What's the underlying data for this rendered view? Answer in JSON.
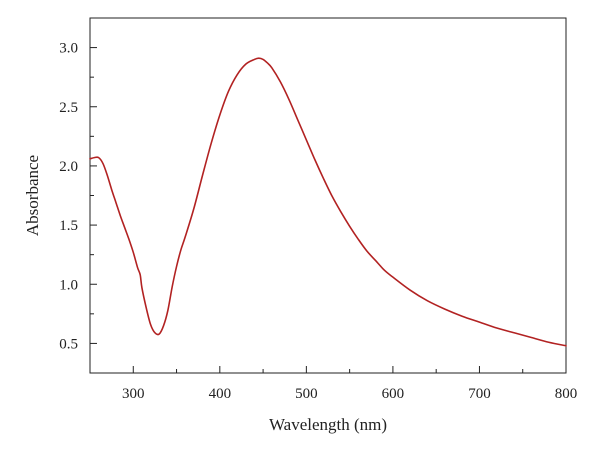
{
  "chart_data": {
    "type": "line",
    "title": "",
    "xlabel": "Wavelength (nm)",
    "ylabel": "Absorbance",
    "xlim": [
      250,
      800
    ],
    "ylim": [
      0.25,
      3.25
    ],
    "x_ticks": [
      300,
      400,
      500,
      600,
      700,
      800
    ],
    "x_tick_labels": [
      "300",
      "400",
      "500",
      "600",
      "700",
      "800"
    ],
    "y_ticks": [
      0.5,
      1.0,
      1.5,
      2.0,
      2.5,
      3.0
    ],
    "y_tick_labels": [
      "0.5",
      "1.0",
      "1.5",
      "2.0",
      "2.5",
      "3.0"
    ],
    "grid": false,
    "legend": "none",
    "colors": {
      "line": "#b22222",
      "axis": "#222222"
    },
    "series": [
      {
        "x": [
          250,
          255,
          260,
          265,
          270,
          275,
          280,
          285,
          290,
          295,
          300,
          305,
          308,
          310,
          315,
          320,
          325,
          330,
          335,
          340,
          345,
          350,
          355,
          360,
          370,
          380,
          390,
          400,
          410,
          420,
          430,
          440,
          445,
          450,
          455,
          460,
          470,
          480,
          490,
          500,
          510,
          520,
          530,
          540,
          550,
          560,
          570,
          580,
          590,
          600,
          620,
          640,
          660,
          680,
          700,
          720,
          740,
          760,
          780,
          800
        ],
        "y": [
          2.06,
          2.07,
          2.07,
          2.02,
          1.92,
          1.8,
          1.69,
          1.58,
          1.48,
          1.38,
          1.27,
          1.14,
          1.08,
          0.97,
          0.8,
          0.66,
          0.59,
          0.58,
          0.65,
          0.78,
          0.98,
          1.15,
          1.29,
          1.4,
          1.64,
          1.92,
          2.19,
          2.43,
          2.63,
          2.77,
          2.86,
          2.9,
          2.91,
          2.9,
          2.87,
          2.83,
          2.71,
          2.56,
          2.39,
          2.22,
          2.05,
          1.89,
          1.74,
          1.61,
          1.49,
          1.38,
          1.28,
          1.2,
          1.12,
          1.06,
          0.95,
          0.86,
          0.79,
          0.73,
          0.68,
          0.63,
          0.59,
          0.55,
          0.51,
          0.48
        ]
      }
    ]
  }
}
